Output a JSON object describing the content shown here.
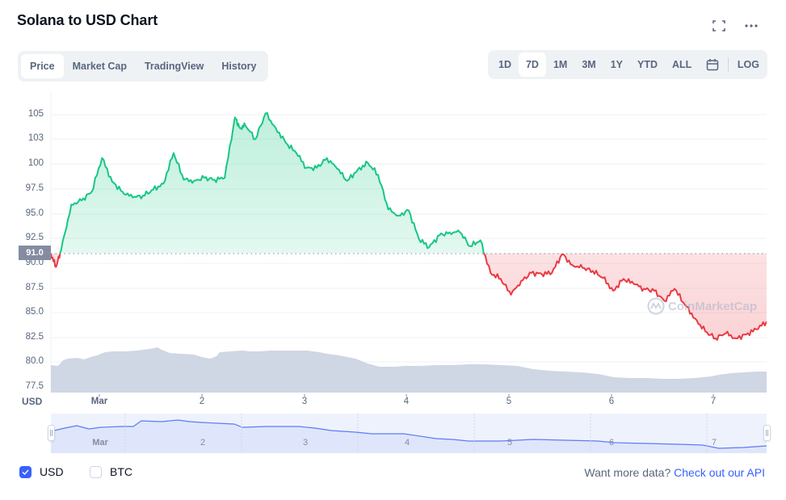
{
  "header": {
    "title": "Solana to USD Chart",
    "fullscreen_icon": "fullscreen-icon",
    "more_icon": "more-horizontal-icon"
  },
  "tabs": [
    {
      "label": "Price",
      "active": true
    },
    {
      "label": "Market Cap",
      "active": false
    },
    {
      "label": "TradingView",
      "active": false
    },
    {
      "label": "History",
      "active": false
    }
  ],
  "ranges": [
    {
      "label": "1D",
      "active": false
    },
    {
      "label": "7D",
      "active": true
    },
    {
      "label": "1M",
      "active": false
    },
    {
      "label": "3M",
      "active": false
    },
    {
      "label": "1Y",
      "active": false
    },
    {
      "label": "YTD",
      "active": false
    },
    {
      "label": "ALL",
      "active": false
    }
  ],
  "range_calendar_icon": "calendar-icon",
  "log_label": "LOG",
  "current_price_label": "91.0",
  "watermark": "CoinMarketCap",
  "legend": {
    "usd": {
      "label": "USD",
      "checked": true
    },
    "btc": {
      "label": "BTC",
      "checked": false
    }
  },
  "footer": {
    "prompt": "Want more data?",
    "link": "Check out our API"
  },
  "colors": {
    "up": "#16c784",
    "down": "#ea3943",
    "volume": "#cfd6e4",
    "accent": "#3861fb",
    "navigator_line": "#5b7cf4",
    "navigator_fill": "#dfe6fb",
    "axis_text": "#58667e",
    "grid": "#eff2f5"
  },
  "chart_data": {
    "type": "line",
    "title": "Solana to USD Chart",
    "xlabel": "",
    "ylabel": "USD",
    "ylim": [
      77.5,
      107
    ],
    "grid": true,
    "legend_position": "bottom-left",
    "baseline": 91.0,
    "y_tick_labels": [
      "105",
      "103",
      "100",
      "97.5",
      "95.0",
      "92.5",
      "90.0",
      "87.5",
      "85.0",
      "82.5",
      "80.0",
      "77.5"
    ],
    "y_tick_values": [
      105,
      102.5,
      100,
      97.5,
      95,
      92.5,
      90,
      87.5,
      85,
      82.5,
      80,
      77.5
    ],
    "x_tick_labels": [
      "Mar",
      "2",
      "3",
      "4",
      "5",
      "6",
      "7"
    ],
    "navigator_tick_labels": [
      "Mar",
      "2",
      "3",
      "4",
      "5",
      "6",
      "7"
    ],
    "series": [
      {
        "name": "USD price",
        "x": [
          0,
          0.05,
          0.1,
          0.2,
          0.3,
          0.4,
          0.5,
          0.6,
          0.7,
          0.8,
          0.9,
          1.0,
          1.1,
          1.2,
          1.3,
          1.4,
          1.5,
          1.6,
          1.7,
          1.8,
          1.85,
          1.9,
          2.0,
          2.1,
          2.2,
          2.3,
          2.4,
          2.5,
          2.6,
          2.7,
          2.8,
          2.9,
          3.0,
          3.1,
          3.2,
          3.3,
          3.4,
          3.5,
          3.6,
          3.7,
          3.8,
          3.9,
          4.0,
          4.1,
          4.2,
          4.3,
          4.4,
          4.5,
          4.6,
          4.7,
          4.8,
          4.9,
          5.0,
          5.1,
          5.2,
          5.3,
          5.4,
          5.5,
          5.6,
          5.7,
          5.8,
          5.9,
          6.0,
          6.1,
          6.2,
          6.3,
          6.4,
          6.5,
          6.6,
          6.7,
          6.8,
          6.9,
          7.0
        ],
        "values": [
          90.9,
          89.6,
          91.3,
          95.9,
          96.3,
          97.2,
          100.6,
          98.2,
          97.2,
          96.6,
          96.8,
          97.4,
          98.0,
          101.1,
          98.4,
          98.3,
          98.6,
          98.4,
          98.6,
          104.7,
          103.6,
          103.9,
          102.5,
          105.1,
          103.6,
          102.1,
          101.1,
          99.6,
          99.6,
          100.6,
          99.5,
          98.3,
          99.4,
          100.1,
          98.9,
          95.4,
          94.8,
          95.3,
          92.4,
          91.6,
          92.8,
          93.1,
          93.1,
          91.7,
          92.3,
          89.0,
          88.4,
          86.8,
          88.2,
          89.0,
          88.9,
          89.0,
          90.9,
          89.8,
          89.5,
          89.2,
          88.5,
          87.2,
          88.4,
          87.9,
          87.4,
          87.2,
          86.2,
          87.4,
          85.8,
          84.4,
          83.1,
          82.4,
          82.9,
          82.4,
          82.8,
          83.3,
          84.1
        ]
      },
      {
        "name": "Volume (relative)",
        "values": [
          0.45,
          0.6,
          0.7,
          0.72,
          0.72,
          0.73,
          0.8,
          0.7,
          0.72,
          0.67,
          0.6,
          0.72,
          0.75,
          0.74,
          0.74,
          0.7,
          0.62,
          0.55,
          0.5,
          0.5,
          0.5,
          0.52,
          0.54,
          0.54,
          0.5,
          0.43,
          0.35,
          0.3,
          0.33,
          0.33,
          0.33,
          0.37,
          0.4,
          0.44,
          0.45
        ]
      }
    ]
  }
}
